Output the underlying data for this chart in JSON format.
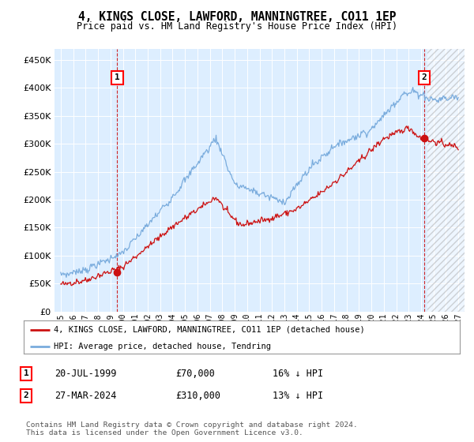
{
  "title": "4, KINGS CLOSE, LAWFORD, MANNINGTREE, CO11 1EP",
  "subtitle": "Price paid vs. HM Land Registry's House Price Index (HPI)",
  "ylim": [
    0,
    470000
  ],
  "yticks": [
    0,
    50000,
    100000,
    150000,
    200000,
    250000,
    300000,
    350000,
    400000,
    450000
  ],
  "xlim_start": 1994.5,
  "xlim_end": 2027.5,
  "xticks": [
    1995,
    1996,
    1997,
    1998,
    1999,
    2000,
    2001,
    2002,
    2003,
    2004,
    2005,
    2006,
    2007,
    2008,
    2009,
    2010,
    2011,
    2012,
    2013,
    2014,
    2015,
    2016,
    2017,
    2018,
    2019,
    2020,
    2021,
    2022,
    2023,
    2024,
    2025,
    2026,
    2027
  ],
  "hpi_color": "#7aacdd",
  "price_color": "#cc1111",
  "ann1_x": 1999.55,
  "ann1_y": 70000,
  "ann2_x": 2024.25,
  "ann2_y": 310000,
  "hatch_start": 2024.5,
  "hatch_end": 2027.5,
  "sale1_date": "20-JUL-1999",
  "sale1_price": "£70,000",
  "sale1_hpi": "16% ↓ HPI",
  "sale2_date": "27-MAR-2024",
  "sale2_price": "£310,000",
  "sale2_hpi": "13% ↓ HPI",
  "legend_label1": "4, KINGS CLOSE, LAWFORD, MANNINGTREE, CO11 1EP (detached house)",
  "legend_label2": "HPI: Average price, detached house, Tendring",
  "footer": "Contains HM Land Registry data © Crown copyright and database right 2024.\nThis data is licensed under the Open Government Licence v3.0.",
  "bg_color": "#ffffff",
  "plot_bg_color": "#ddeeff"
}
